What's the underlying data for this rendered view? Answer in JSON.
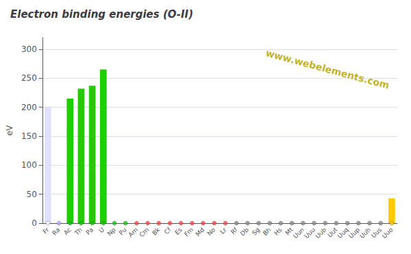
{
  "chart_data": {
    "type": "bar",
    "title": "Electron binding energies (O-II)",
    "ylabel": "eV",
    "annotations": [
      "www.webelements.com"
    ],
    "categories": [
      "Fr",
      "Ra",
      "Ac",
      "Th",
      "Pa",
      "U",
      "Np",
      "Pu",
      "Am",
      "Cm",
      "Bk",
      "Cf",
      "Es",
      "Fm",
      "Md",
      "No",
      "Lr",
      "Rf",
      "Db",
      "Sg",
      "Bh",
      "Hs",
      "Mt",
      "Uun",
      "Uuu",
      "Uub",
      "Uut",
      "Uuq",
      "Uup",
      "Uuh",
      "Uus",
      "Uuo"
    ],
    "series": [
      {
        "type": "bar",
        "values": [
          200,
          0,
          215,
          232,
          237,
          265,
          0,
          0,
          0,
          0,
          0,
          0,
          0,
          0,
          0,
          0,
          0,
          0,
          0,
          0,
          0,
          0,
          0,
          0,
          0,
          0,
          0,
          0,
          0,
          0,
          0,
          43
        ],
        "colors": [
          "#e0e0ff",
          "#7060a0",
          "#22cc00",
          "#22cc00",
          "#22cc00",
          "#22cc00",
          "#22cc00",
          "#22cc00",
          "#22cc00",
          "#22cc00",
          "#22cc00",
          "#22cc00",
          "#22cc00",
          "#22cc00",
          "#22cc00",
          "#22cc00",
          "#22cc00",
          "#22cc00",
          "#22cc00",
          "#22cc00",
          "#22cc00",
          "#22cc00",
          "#22cc00",
          "#22cc00",
          "#22cc00",
          "#22cc00",
          "#22cc00",
          "#22cc00",
          "#22cc00",
          "#22cc00",
          "#22cc00",
          "#ffcc00"
        ]
      },
      {
        "type": "scatter",
        "values": [
          0,
          0,
          0,
          0,
          0,
          0,
          0,
          0,
          0,
          0,
          0,
          0,
          0,
          0,
          0,
          0,
          0,
          0,
          0,
          0,
          0,
          0,
          0,
          0,
          0,
          0,
          0,
          0,
          0,
          0,
          0,
          0
        ],
        "colors": [
          "#ffffff",
          "#aaaaff",
          "#00cc00",
          "#00cc00",
          "#00cc00",
          "#00cc00",
          "#00cc00",
          "#00cc00",
          "#ff4444",
          "#ff4444",
          "#ff4444",
          "#ff4444",
          "#ff4444",
          "#ff4444",
          "#ff4444",
          "#ff4444",
          "#ff4444",
          "#888888",
          "#888888",
          "#888888",
          "#888888",
          "#888888",
          "#888888",
          "#888888",
          "#888888",
          "#888888",
          "#888888",
          "#888888",
          "#888888",
          "#888888",
          "#888888",
          "#ffcc00"
        ]
      }
    ],
    "ylim": [
      0,
      320
    ],
    "yticks": [
      0,
      50,
      100,
      150,
      200,
      250,
      300
    ],
    "grid": true
  }
}
